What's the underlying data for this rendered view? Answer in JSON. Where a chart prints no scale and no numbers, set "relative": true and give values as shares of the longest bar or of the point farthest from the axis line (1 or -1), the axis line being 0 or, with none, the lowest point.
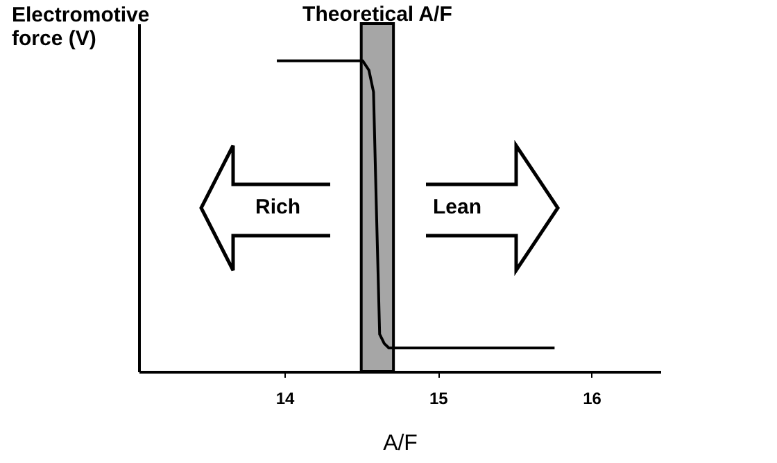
{
  "chart_data": {
    "type": "line",
    "relative": true,
    "xlabel": "A/F",
    "ylabel": "Electromotive force (V)",
    "x": [
      13.95,
      14.51,
      14.55,
      14.58,
      14.6,
      14.62,
      14.65,
      14.68,
      15.76
    ],
    "series": [
      {
        "color": "#000000",
        "values": [
          1,
          1,
          0.97,
          0.9,
          0.5,
          0.12,
          0.09,
          0.076,
          0.076
        ]
      }
    ],
    "xlim": [
      13.05,
      16.45
    ],
    "xticks": [
      14,
      15,
      16
    ],
    "grid": false,
    "bands": [
      {
        "axis": "x",
        "from": 14.5,
        "to": 14.71,
        "label": "Theoretical A/F",
        "color": "#808080"
      }
    ],
    "annotations": [
      "Rich",
      "Lean"
    ]
  }
}
